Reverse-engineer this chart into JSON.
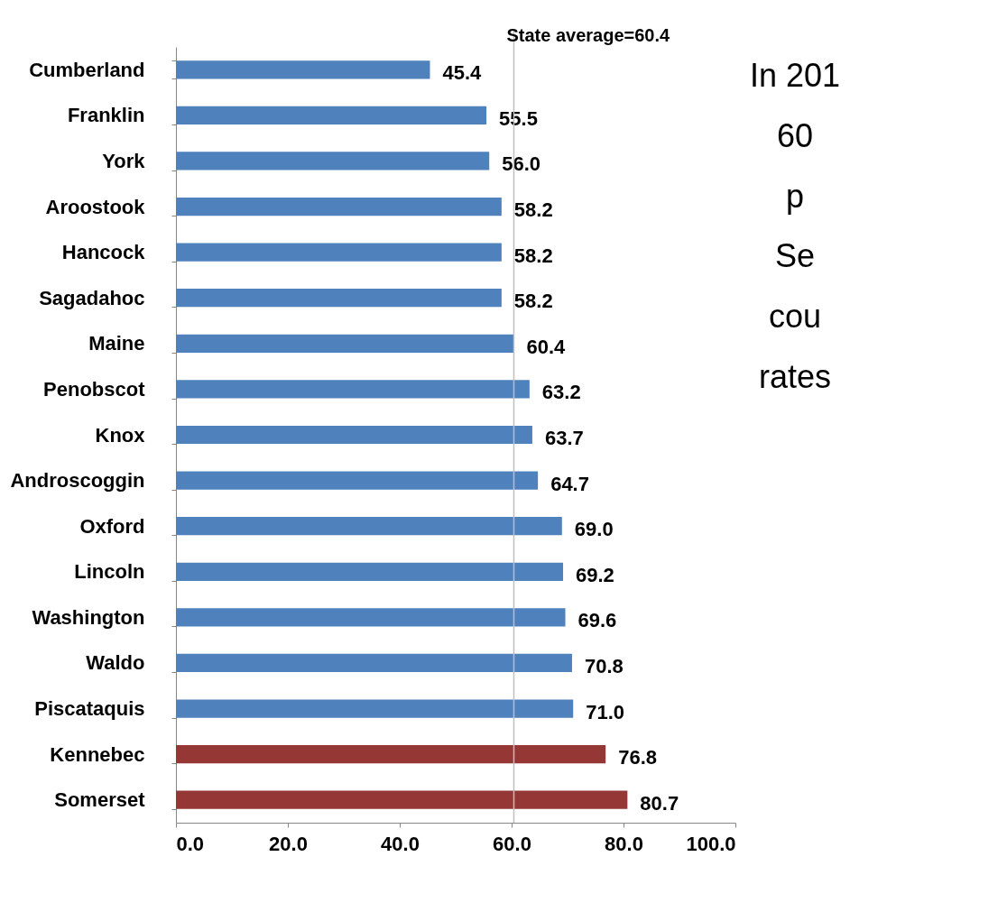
{
  "chart_data": {
    "type": "bar",
    "orientation": "horizontal",
    "categories": [
      "Cumberland",
      "Franklin",
      "York",
      "Aroostook",
      "Hancock",
      "Sagadahoc",
      "Maine",
      "Penobscot",
      "Knox",
      "Androscoggin",
      "Oxford",
      "Lincoln",
      "Washington",
      "Waldo",
      "Piscataquis",
      "Kennebec",
      "Somerset"
    ],
    "values": [
      45.4,
      55.5,
      56.0,
      58.2,
      58.2,
      58.2,
      60.4,
      63.2,
      63.7,
      64.7,
      69.0,
      69.2,
      69.6,
      70.8,
      71.0,
      76.8,
      80.7
    ],
    "value_labels": [
      "45.4",
      "55.5",
      "56.0",
      "58.2",
      "58.2",
      "58.2",
      "60.4",
      "63.2",
      "63.7",
      "64.7",
      "69.0",
      "69.2",
      "69.6",
      "70.8",
      "71.0",
      "76.8",
      "80.7"
    ],
    "colors": [
      "#4f81bd",
      "#4f81bd",
      "#4f81bd",
      "#4f81bd",
      "#4f81bd",
      "#4f81bd",
      "#4f81bd",
      "#4f81bd",
      "#4f81bd",
      "#4f81bd",
      "#4f81bd",
      "#4f81bd",
      "#4f81bd",
      "#4f81bd",
      "#4f81bd",
      "#953735",
      "#953735"
    ],
    "xlim": [
      0,
      100
    ],
    "xticks": [
      {
        "value": 0,
        "label": "0.0"
      },
      {
        "value": 20,
        "label": "20.0"
      },
      {
        "value": 40,
        "label": "40.0"
      },
      {
        "value": 60,
        "label": "60.0"
      },
      {
        "value": 80,
        "label": "80.0"
      },
      {
        "value": 100,
        "label": "100.0"
      }
    ],
    "ref_lines": [
      {
        "axis": "x",
        "value": 60.4,
        "label": "State average=60.4",
        "color": "#bfbfbf"
      }
    ],
    "annotations": [
      "In 201",
      "60",
      "p",
      "Se",
      "cou",
      "rates"
    ],
    "grid": false
  }
}
